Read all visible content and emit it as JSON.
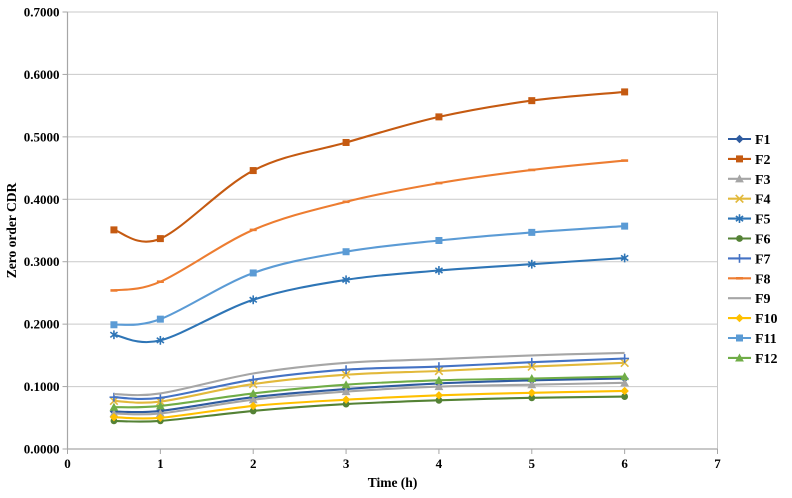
{
  "chart_data": {
    "type": "line",
    "title": "",
    "xlabel": "Time (h)",
    "ylabel": "Zero order CDR",
    "x": [
      0.5,
      1,
      2,
      3,
      4,
      5,
      6
    ],
    "xlim": [
      0,
      7
    ],
    "ylim": [
      0,
      0.7
    ],
    "xticks": [
      "0",
      "1",
      "2",
      "3",
      "4",
      "5",
      "6",
      "7"
    ],
    "yticks": [
      "0.0000",
      "0.1000",
      "0.2000",
      "0.3000",
      "0.4000",
      "0.5000",
      "0.6000",
      "0.7000"
    ],
    "grid": "horizontal",
    "line_style": "smooth",
    "legend_position": "right",
    "colors": {
      "gridline": "#c9c9c9",
      "axis_line": "#a6a6a6",
      "plot_border": "#c9c9c9"
    },
    "series": [
      {
        "name": "F1",
        "color": "#2E5B9F",
        "marker": "diamond",
        "values": [
          0.06,
          0.061,
          0.083,
          0.096,
          0.105,
          0.11,
          0.113
        ]
      },
      {
        "name": "F2",
        "color": "#C55A11",
        "marker": "square",
        "values": [
          0.351,
          0.337,
          0.446,
          0.491,
          0.532,
          0.558,
          0.572
        ]
      },
      {
        "name": "F3",
        "color": "#A5A5A5",
        "marker": "triangle",
        "values": [
          0.057,
          0.057,
          0.079,
          0.092,
          0.1,
          0.103,
          0.106
        ]
      },
      {
        "name": "F4",
        "color": "#E2B93B",
        "marker": "x",
        "values": [
          0.077,
          0.076,
          0.104,
          0.119,
          0.125,
          0.132,
          0.138
        ]
      },
      {
        "name": "F5",
        "color": "#2E75B6",
        "marker": "asterisk",
        "values": [
          0.183,
          0.174,
          0.239,
          0.271,
          0.286,
          0.296,
          0.306
        ]
      },
      {
        "name": "F6",
        "color": "#548235",
        "marker": "circle",
        "values": [
          0.045,
          0.045,
          0.061,
          0.072,
          0.078,
          0.082,
          0.084
        ]
      },
      {
        "name": "F7",
        "color": "#4472C4",
        "marker": "plus",
        "values": [
          0.083,
          0.082,
          0.111,
          0.127,
          0.132,
          0.139,
          0.145
        ]
      },
      {
        "name": "F8",
        "color": "#ED7D31",
        "marker": "dash",
        "values": [
          0.254,
          0.268,
          0.351,
          0.396,
          0.426,
          0.447,
          0.462
        ]
      },
      {
        "name": "F9",
        "color": "#A6A6A6",
        "marker": "none",
        "values": [
          0.088,
          0.089,
          0.121,
          0.138,
          0.144,
          0.15,
          0.154
        ]
      },
      {
        "name": "F10",
        "color": "#FFC000",
        "marker": "diamond",
        "values": [
          0.051,
          0.05,
          0.069,
          0.079,
          0.086,
          0.09,
          0.093
        ]
      },
      {
        "name": "F11",
        "color": "#5B9BD5",
        "marker": "square",
        "values": [
          0.199,
          0.208,
          0.282,
          0.316,
          0.334,
          0.347,
          0.357
        ]
      },
      {
        "name": "F12",
        "color": "#70AD47",
        "marker": "triangle",
        "values": [
          0.067,
          0.069,
          0.089,
          0.103,
          0.11,
          0.113,
          0.116
        ]
      }
    ]
  }
}
